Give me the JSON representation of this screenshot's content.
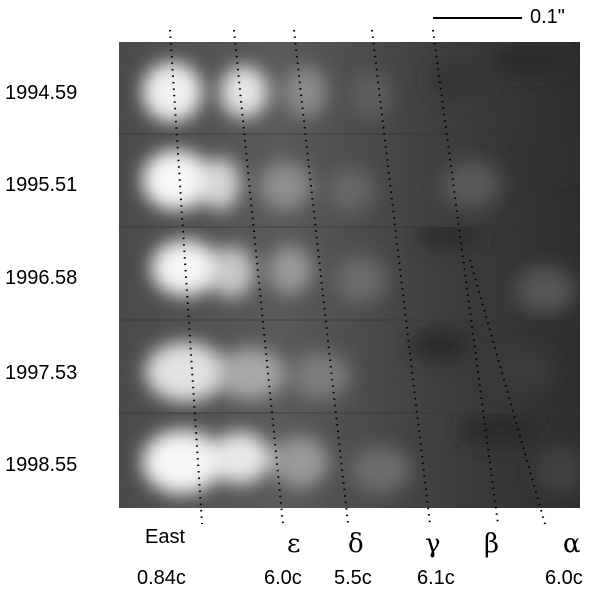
{
  "scale_bar": {
    "label": "0.1\""
  },
  "epochs": [
    "1994.59",
    "1995.51",
    "1996.58",
    "1997.53",
    "1998.55"
  ],
  "components": [
    {
      "name": "East",
      "speed": "0.84c"
    },
    {
      "name": "ε",
      "speed": "6.0c"
    },
    {
      "name": "δ",
      "speed": "5.5c"
    },
    {
      "name": "γ",
      "speed": "6.1c"
    },
    {
      "name": "β",
      "speed": ""
    },
    {
      "name": "α",
      "speed": "6.0c"
    }
  ]
}
